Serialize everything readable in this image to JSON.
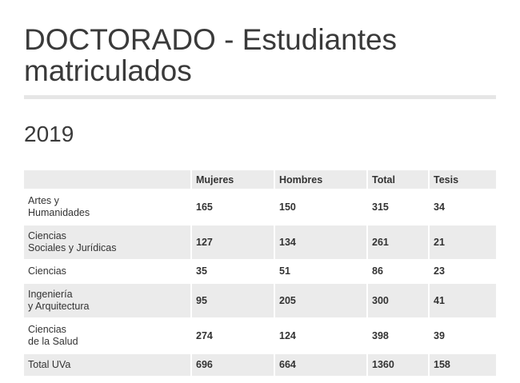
{
  "header": {
    "title_line1": "DOCTORADO - Estudiantes",
    "title_line2": "matriculados",
    "year": "2019"
  },
  "table": {
    "columns": [
      "",
      "Mujeres",
      "Hombres",
      "Total",
      "Tesis"
    ],
    "rows": [
      {
        "label_line1": "Artes y",
        "label_line2": "Humanidades",
        "mujeres": "165",
        "hombres": "150",
        "total": "315",
        "tesis": "34"
      },
      {
        "label_line1": "Ciencias",
        "label_line2": "Sociales y Jurídicas",
        "mujeres": "127",
        "hombres": "134",
        "total": "261",
        "tesis": "21"
      },
      {
        "label_line1": "Ciencias",
        "label_line2": "",
        "mujeres": "35",
        "hombres": "51",
        "total": "86",
        "tesis": "23"
      },
      {
        "label_line1": "Ingeniería",
        "label_line2": "y Arquitectura",
        "mujeres": "95",
        "hombres": "205",
        "total": "300",
        "tesis": "41"
      },
      {
        "label_line1": "Ciencias",
        "label_line2": "de la Salud",
        "mujeres": "274",
        "hombres": "124",
        "total": "398",
        "tesis": "39"
      }
    ],
    "total_row": {
      "label": "Total UVa",
      "mujeres": "696",
      "hombres": "664",
      "total": "1360",
      "tesis": "158"
    }
  },
  "colors": {
    "text": "#333333",
    "stripe": "#ebebeb",
    "rule": "#e6e6e6"
  }
}
